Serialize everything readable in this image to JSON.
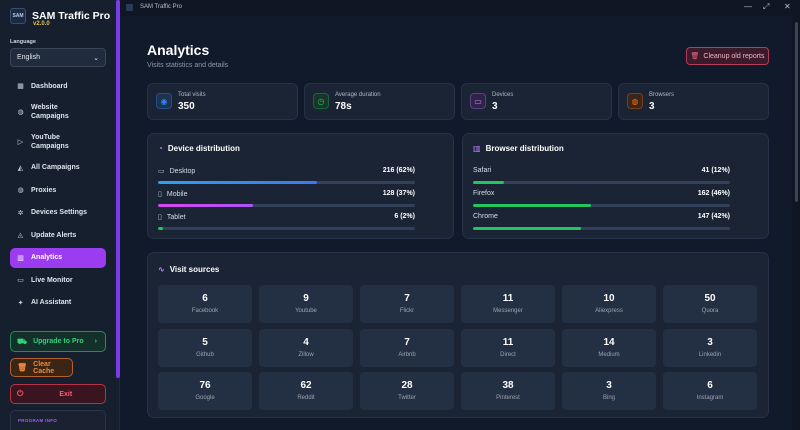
{
  "window": {
    "title": "SAM Traffic Pro",
    "minimize": "—",
    "maximize": "⤢",
    "close": "✕"
  },
  "brand": {
    "logo": "SAM",
    "name": "SAM Traffic Pro",
    "version": "v2.0.0"
  },
  "language": {
    "label": "Language",
    "value": "English"
  },
  "nav": [
    {
      "label": "Dashboard",
      "icon": "dashboard-icon",
      "glyph": "▦"
    },
    {
      "label": "Website Campaigns",
      "icon": "globe-icon",
      "glyph": "◍"
    },
    {
      "label": "YouTube Campaigns",
      "icon": "youtube-icon",
      "glyph": "▷"
    },
    {
      "label": "All Campaigns",
      "icon": "megaphone-icon",
      "glyph": "◭"
    },
    {
      "label": "Proxies",
      "icon": "proxy-globe-icon",
      "glyph": "◍"
    },
    {
      "label": "Devices Settings",
      "icon": "gear-icon",
      "glyph": "✲"
    },
    {
      "label": "Update Alerts",
      "icon": "bell-icon",
      "glyph": "◬"
    },
    {
      "label": "Analytics",
      "icon": "bar-chart-icon",
      "glyph": "▥"
    },
    {
      "label": "Live Monitor",
      "icon": "monitor-icon",
      "glyph": "▭"
    },
    {
      "label": "AI Assistant",
      "icon": "sparkle-icon",
      "glyph": "✦"
    }
  ],
  "sidebar_buttons": {
    "upgrade": "Upgrade to Pro",
    "upgrade_chevron": "›",
    "clear_cache": "Clear Cache",
    "exit": "Exit",
    "program_info": "PROGRAM INFO"
  },
  "page": {
    "title": "Analytics",
    "subtitle": "Visits statistics and details",
    "cleanup_button": "Cleanup old reports"
  },
  "stats": [
    {
      "label": "Total visits",
      "value": "350",
      "icon": "eye-icon",
      "glyph": "◉",
      "color": "#3b82f6",
      "bg": "#1c3350"
    },
    {
      "label": "Average duration",
      "value": "78s",
      "icon": "clock-icon",
      "glyph": "◷",
      "color": "#22c55e",
      "bg": "#17352a"
    },
    {
      "label": "Devices",
      "value": "3",
      "icon": "monitor-icon",
      "glyph": "▭",
      "color": "#c084fc",
      "bg": "#2e2346"
    },
    {
      "label": "Browsers",
      "value": "3",
      "icon": "globe-icon",
      "glyph": "◍",
      "color": "#f97316",
      "bg": "#3a2618"
    }
  ],
  "device_distribution": {
    "title": "Device distribution",
    "rows": [
      {
        "label": "Desktop",
        "icon": "desktop-icon",
        "glyph": "▭",
        "value": "216 (62%)",
        "fraction": 0.62,
        "color": "#2f8cf0"
      },
      {
        "label": "Mobile",
        "icon": "phone-icon",
        "glyph": "▯",
        "value": "128 (37%)",
        "fraction": 0.37,
        "color": "#d946ef"
      },
      {
        "label": "Tablet",
        "icon": "tablet-icon",
        "glyph": "▯",
        "value": "6 (2%)",
        "fraction": 0.02,
        "color": "#22c55e"
      }
    ]
  },
  "browser_distribution": {
    "title": "Browser distribution",
    "rows": [
      {
        "label": "Safari",
        "value": "41 (12%)",
        "fraction": 0.12,
        "color": "#22c55e"
      },
      {
        "label": "Firefox",
        "value": "162 (46%)",
        "fraction": 0.46,
        "color": "#22c55e"
      },
      {
        "label": "Chrome",
        "value": "147 (42%)",
        "fraction": 0.42,
        "color": "#22c55e"
      }
    ]
  },
  "visit_sources": {
    "title": "Visit sources",
    "items": [
      {
        "value": "6",
        "name": "Facebook"
      },
      {
        "value": "9",
        "name": "Youtube"
      },
      {
        "value": "7",
        "name": "Flickr"
      },
      {
        "value": "11",
        "name": "Messenger"
      },
      {
        "value": "10",
        "name": "Aliexpress"
      },
      {
        "value": "50",
        "name": "Quora"
      },
      {
        "value": "5",
        "name": "Github"
      },
      {
        "value": "4",
        "name": "Zillow"
      },
      {
        "value": "7",
        "name": "Airbnb"
      },
      {
        "value": "11",
        "name": "Direct"
      },
      {
        "value": "14",
        "name": "Medium"
      },
      {
        "value": "3",
        "name": "Linkedin"
      },
      {
        "value": "76",
        "name": "Google"
      },
      {
        "value": "62",
        "name": "Reddit"
      },
      {
        "value": "28",
        "name": "Twitter"
      },
      {
        "value": "38",
        "name": "Pinterest"
      },
      {
        "value": "3",
        "name": "Bing"
      },
      {
        "value": "6",
        "name": "Instagram"
      }
    ]
  },
  "colors": {
    "accent": "#9b3cf0",
    "background": "#111a2a",
    "panel": "#1a2434"
  }
}
